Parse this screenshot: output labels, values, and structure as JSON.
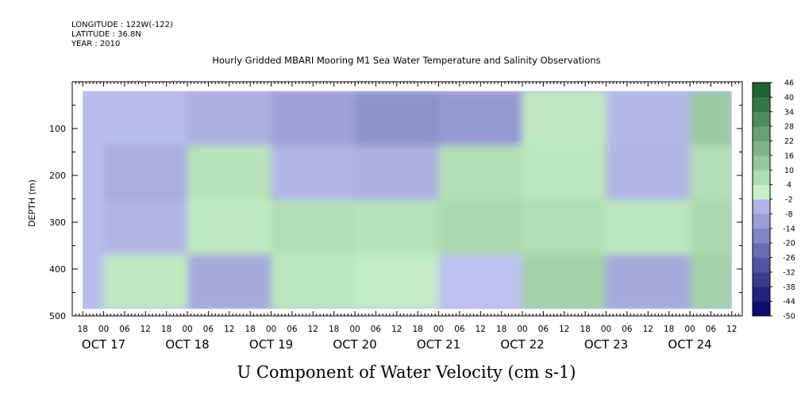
{
  "header": {
    "lines": [
      "LONGITUDE : 122W(-122)",
      "LATITUDE : 36.8N",
      "YEAR : 2010"
    ]
  },
  "colors": {
    "background": "#ffffff",
    "axis": "#000000",
    "palette_negative_dark": "#000066",
    "palette_negative_light": "#c8cdf6",
    "palette_positive_light": "#c8f0c8",
    "palette_positive_dark": "#004d1a"
  },
  "chart_data": {
    "type": "heatmap",
    "title": "Hourly Gridded MBARI Mooring M1 Sea Water Temperature and Salinity Observations",
    "subtitle": "U Component of Water Velocity (cm s-1)",
    "ylabel": "DEPTH (m)",
    "xlabel": "",
    "x_range": [
      "OCT 16 15:00",
      "OCT 24 15:00"
    ],
    "data_extent": [
      "OCT 16 18:00",
      "OCT 24 12:00"
    ],
    "ylim": [
      500,
      0
    ],
    "y_data_extent": [
      20,
      485
    ],
    "y_inverted": true,
    "y_ticks": [
      100,
      200,
      300,
      400,
      500
    ],
    "x_hour_ticks": [
      "18",
      "00",
      "06",
      "12",
      "18",
      "00",
      "06",
      "12",
      "18",
      "00",
      "06",
      "12",
      "18",
      "00",
      "06",
      "12",
      "18",
      "00",
      "06",
      "12",
      "18",
      "00",
      "06",
      "12",
      "18",
      "00",
      "06",
      "12",
      "18",
      "00",
      "06",
      "12"
    ],
    "x_day_labels": [
      "OCT 17",
      "OCT 18",
      "OCT 19",
      "OCT 20",
      "OCT 21",
      "OCT 22",
      "OCT 23",
      "OCT 24"
    ],
    "colorbar": {
      "levels": [
        -50,
        -44,
        -38,
        -32,
        -26,
        -20,
        -14,
        -8,
        -2,
        4,
        10,
        16,
        22,
        28,
        34,
        40,
        46
      ],
      "labels": [
        "46",
        "40",
        "34",
        "28",
        "22",
        "16",
        "10",
        "4",
        "-2",
        "-8",
        "-14",
        "-20",
        "-26",
        "-32",
        "-38",
        "-44",
        "-50"
      ]
    },
    "columns": [
      {
        "day": "OCT 17",
        "u": [
          -3,
          -7,
          -5,
          3
        ]
      },
      {
        "day": "OCT 18",
        "u": [
          -6,
          5,
          3,
          -8
        ]
      },
      {
        "day": "OCT 19",
        "u": [
          -10,
          -5,
          6,
          4
        ]
      },
      {
        "day": "OCT 20",
        "u": [
          -14,
          -6,
          5,
          2
        ]
      },
      {
        "day": "OCT 21",
        "u": [
          -12,
          6,
          8,
          -2
        ]
      },
      {
        "day": "OCT 22",
        "u": [
          3,
          4,
          6,
          10
        ]
      },
      {
        "day": "OCT 23",
        "u": [
          -4,
          -5,
          4,
          -8
        ]
      },
      {
        "day": "OCT 24",
        "u": [
          12,
          6,
          8,
          10
        ]
      }
    ],
    "column_depths": [
      50,
      180,
      310,
      430
    ],
    "grid": false,
    "legend": "right"
  }
}
